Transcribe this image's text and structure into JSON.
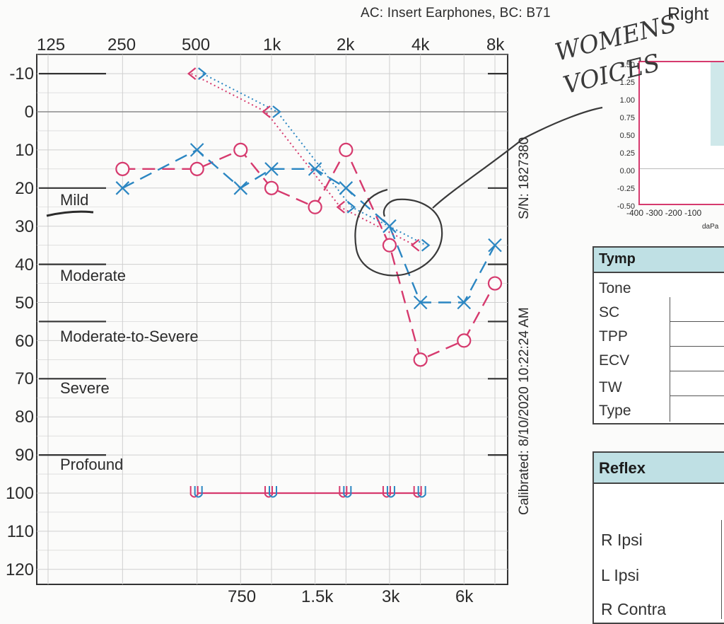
{
  "header": {
    "transducers": "AC: Insert Earphones, BC: B71",
    "ear": "Right"
  },
  "audiogram": {
    "freq_top_labels": [
      "125",
      "250",
      "500",
      "1k",
      "2k",
      "4k",
      "8k"
    ],
    "freq_bottom_labels": [
      "750",
      "1.5k",
      "3k",
      "6k"
    ],
    "db_labels": [
      "-10",
      "0",
      "10",
      "20",
      "30",
      "40",
      "50",
      "60",
      "70",
      "80",
      "90",
      "100",
      "110",
      "120"
    ],
    "severity_labels": [
      "Mild",
      "Moderate",
      "Moderate-to-Severe",
      "Severe",
      "Profound"
    ],
    "serial": "S/N: 1827380",
    "calibrated": "Calibrated: 8/10/2020 10:22:24 AM",
    "colors": {
      "right_ear": "#d63a6e",
      "left_ear": "#2b86c2",
      "grid": "#cfcfcf",
      "ink": "#333333"
    }
  },
  "chart_data": {
    "type": "scatter",
    "x_scale": "log2 (Hz)",
    "ylim": [
      -10,
      120
    ],
    "y_inverted": true,
    "series": [
      {
        "marker": "O",
        "x": [
          250,
          500,
          750,
          1000,
          1500,
          2000,
          3000,
          4000,
          6000,
          8000
        ],
        "values": [
          15,
          15,
          10,
          20,
          25,
          10,
          35,
          65,
          60,
          45
        ]
      },
      {
        "marker": "X",
        "x": [
          250,
          500,
          750,
          1000,
          1500,
          2000,
          3000,
          4000,
          6000,
          8000
        ],
        "values": [
          20,
          10,
          20,
          15,
          15,
          20,
          30,
          50,
          50,
          35
        ]
      },
      {
        "marker": "<",
        "x": [
          500,
          1000,
          2000,
          4000
        ],
        "values": [
          -10,
          0,
          25,
          35
        ]
      },
      {
        "marker": ">",
        "x": [
          500,
          1000,
          2000,
          4000
        ],
        "values": [
          -10,
          0,
          25,
          35
        ]
      },
      {
        "marker": "U",
        "x": [
          500,
          1000,
          2000,
          3000,
          4000
        ],
        "values": [
          100,
          100,
          100,
          100,
          100
        ]
      }
    ]
  },
  "tymp_chart": {
    "y_ticks": [
      "1.50",
      "1.25",
      "1.00",
      "0.75",
      "0.50",
      "0.25",
      "0.00",
      "-0.25",
      "-0.50"
    ],
    "x_ticks": [
      "-400",
      "-300",
      "-200",
      "-100"
    ],
    "x_unit": "daPa"
  },
  "tymp": {
    "title": "Tymp",
    "rows": [
      "Tone",
      "SC",
      "TPP",
      "ECV",
      "TW",
      "Type"
    ]
  },
  "reflex": {
    "title": "Reflex",
    "rows": [
      "R Ipsi",
      "L Ipsi",
      "R Contra"
    ]
  },
  "handwriting": {
    "note": "WOMENS VOICES"
  }
}
